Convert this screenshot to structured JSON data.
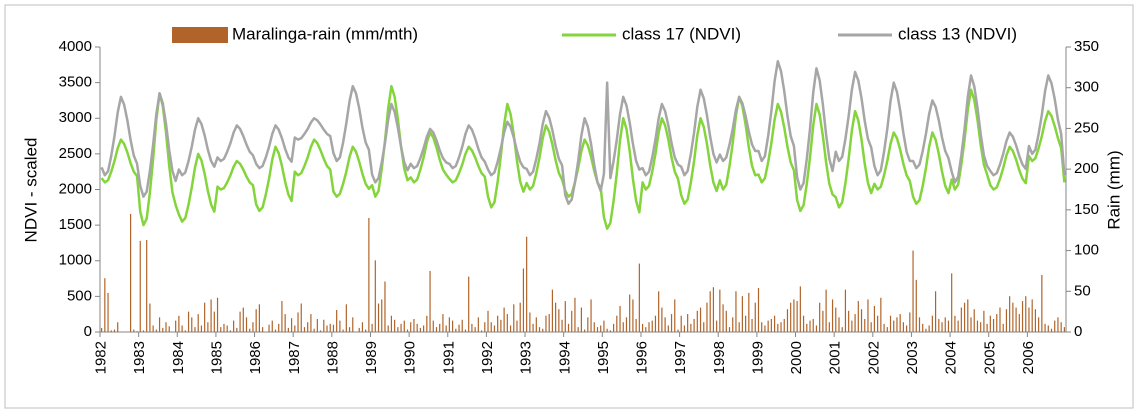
{
  "chart_data": {
    "type": "combo",
    "ylabel": "NDVI - scaled",
    "y2label": "Rain (mm)",
    "ylim": [
      0,
      4000
    ],
    "yticks": [
      0,
      500,
      1000,
      1500,
      2000,
      2500,
      3000,
      3500,
      4000
    ],
    "y2lim": [
      0,
      350
    ],
    "y2ticks": [
      0,
      50,
      100,
      150,
      200,
      250,
      300,
      350
    ],
    "categories": [
      "1982",
      null,
      null,
      null,
      null,
      null,
      null,
      null,
      null,
      null,
      null,
      null,
      "1983",
      null,
      null,
      null,
      null,
      null,
      null,
      null,
      null,
      null,
      null,
      null,
      "1984",
      null,
      null,
      null,
      null,
      null,
      null,
      null,
      null,
      null,
      null,
      null,
      "1985",
      null,
      null,
      null,
      null,
      null,
      null,
      null,
      null,
      null,
      null,
      null,
      "1986",
      null,
      null,
      null,
      null,
      null,
      null,
      null,
      null,
      null,
      null,
      null,
      "1987",
      null,
      null,
      null,
      null,
      null,
      null,
      null,
      null,
      null,
      null,
      null,
      "1988",
      null,
      null,
      null,
      null,
      null,
      null,
      null,
      null,
      null,
      null,
      null,
      "1989",
      null,
      null,
      null,
      null,
      null,
      null,
      null,
      null,
      null,
      null,
      null,
      "1990",
      null,
      null,
      null,
      null,
      null,
      null,
      null,
      null,
      null,
      null,
      null,
      "1991",
      null,
      null,
      null,
      null,
      null,
      null,
      null,
      null,
      null,
      null,
      null,
      "1992",
      null,
      null,
      null,
      null,
      null,
      null,
      null,
      null,
      null,
      null,
      null,
      "1993",
      null,
      null,
      null,
      null,
      null,
      null,
      null,
      null,
      null,
      null,
      null,
      "1994",
      null,
      null,
      null,
      null,
      null,
      null,
      null,
      null,
      null,
      null,
      null,
      "1995",
      null,
      null,
      null,
      null,
      null,
      null,
      null,
      null,
      null,
      null,
      null,
      "1996",
      null,
      null,
      null,
      null,
      null,
      null,
      null,
      null,
      null,
      null,
      null,
      "1997",
      null,
      null,
      null,
      null,
      null,
      null,
      null,
      null,
      null,
      null,
      null,
      "1998",
      null,
      null,
      null,
      null,
      null,
      null,
      null,
      null,
      null,
      null,
      null,
      "1999",
      null,
      null,
      null,
      null,
      null,
      null,
      null,
      null,
      null,
      null,
      null,
      "2000",
      null,
      null,
      null,
      null,
      null,
      null,
      null,
      null,
      null,
      null,
      null,
      "2001",
      null,
      null,
      null,
      null,
      null,
      null,
      null,
      null,
      null,
      null,
      null,
      "2002",
      null,
      null,
      null,
      null,
      null,
      null,
      null,
      null,
      null,
      null,
      null,
      "2003",
      null,
      null,
      null,
      null,
      null,
      null,
      null,
      null,
      null,
      null,
      null,
      "2004",
      null,
      null,
      null,
      null,
      null,
      null,
      null,
      null,
      null,
      null,
      null,
      "2005",
      null,
      null,
      null,
      null,
      null,
      null,
      null,
      null,
      null,
      null,
      null,
      "2006",
      null,
      null,
      null,
      null,
      null,
      null,
      null,
      null,
      null,
      null,
      null
    ],
    "series": [
      {
        "name": "Maralinga-rain (mm/mth)",
        "type": "bar",
        "axis": "y2",
        "color": "#b0642a",
        "values": [
          5,
          66,
          48,
          2,
          3,
          12,
          0,
          0,
          0,
          145,
          3,
          1,
          112,
          2,
          113,
          35,
          8,
          3,
          18,
          5,
          12,
          7,
          0,
          14,
          20,
          8,
          2,
          25,
          18,
          6,
          22,
          8,
          36,
          12,
          40,
          25,
          42,
          6,
          10,
          8,
          2,
          14,
          5,
          25,
          30,
          18,
          4,
          12,
          28,
          34,
          6,
          0,
          9,
          14,
          3,
          10,
          38,
          22,
          5,
          17,
          8,
          24,
          35,
          6,
          12,
          22,
          4,
          16,
          2,
          15,
          8,
          10,
          9,
          27,
          14,
          3,
          34,
          6,
          18,
          0,
          5,
          12,
          3,
          140,
          10,
          88,
          35,
          40,
          62,
          8,
          20,
          15,
          6,
          10,
          14,
          3,
          12,
          16,
          10,
          5,
          8,
          20,
          75,
          14,
          6,
          10,
          22,
          8,
          18,
          14,
          4,
          9,
          15,
          3,
          68,
          10,
          6,
          18,
          2,
          12,
          26,
          12,
          8,
          20,
          15,
          30,
          22,
          8,
          34,
          14,
          36,
          78,
          117,
          24,
          10,
          18,
          6,
          4,
          20,
          22,
          52,
          36,
          28,
          15,
          38,
          10,
          26,
          42,
          6,
          30,
          3,
          18,
          40,
          12,
          6,
          8,
          14,
          4,
          2,
          10,
          20,
          32,
          12,
          18,
          46,
          40,
          16,
          84,
          10,
          6,
          12,
          14,
          20,
          50,
          30,
          18,
          8,
          22,
          40,
          3,
          20,
          8,
          22,
          10,
          16,
          26,
          30,
          12,
          36,
          50,
          55,
          14,
          52,
          34,
          26,
          6,
          18,
          50,
          12,
          44,
          20,
          48,
          16,
          36,
          54,
          12,
          8,
          14,
          16,
          20,
          10,
          12,
          16,
          28,
          36,
          40,
          38,
          56,
          20,
          10,
          14,
          16,
          8,
          36,
          26,
          52,
          12,
          40,
          30,
          18,
          6,
          52,
          26,
          14,
          22,
          38,
          28,
          16,
          40,
          12,
          32,
          20,
          42,
          10,
          6,
          20,
          14,
          18,
          22,
          12,
          8,
          24,
          100,
          64,
          18,
          10,
          4,
          8,
          20,
          50,
          16,
          12,
          18,
          14,
          72,
          20,
          14,
          30,
          36,
          40,
          18,
          28,
          14,
          12,
          26,
          10,
          20,
          16,
          22,
          30,
          10,
          28,
          44,
          36,
          30,
          22,
          38,
          44,
          30,
          40,
          28,
          18,
          70,
          10,
          8,
          4,
          14,
          18,
          12,
          6
        ]
      },
      {
        "name": "class 17 (NDVI)",
        "type": "line",
        "color": "#84d43c",
        "values": [
          2160,
          2100,
          2130,
          2250,
          2400,
          2580,
          2700,
          2640,
          2520,
          2370,
          2250,
          2190,
          1690,
          1500,
          1590,
          1960,
          2430,
          2980,
          3350,
          3170,
          2800,
          2330,
          1960,
          1780,
          1650,
          1550,
          1600,
          1790,
          2030,
          2310,
          2500,
          2410,
          2220,
          1980,
          1790,
          1690,
          2040,
          2000,
          2020,
          2100,
          2200,
          2320,
          2400,
          2360,
          2280,
          2180,
          2100,
          2060,
          1790,
          1700,
          1750,
          1930,
          2150,
          2420,
          2600,
          2510,
          2330,
          2110,
          1930,
          1840,
          2250,
          2200,
          2230,
          2330,
          2450,
          2600,
          2700,
          2650,
          2550,
          2430,
          2330,
          2280,
          1970,
          1900,
          1940,
          2080,
          2250,
          2460,
          2600,
          2530,
          2390,
          2220,
          2080,
          2010,
          2060,
          1900,
          1980,
          2290,
          2680,
          3140,
          3450,
          3300,
          2990,
          2600,
          2290,
          2130,
          2170,
          2100,
          2140,
          2280,
          2450,
          2660,
          2800,
          2730,
          2590,
          2420,
          2280,
          2210,
          2150,
          2100,
          2130,
          2230,
          2350,
          2500,
          2600,
          2550,
          2450,
          2330,
          2230,
          2180,
          1900,
          1750,
          1820,
          2110,
          2480,
          2910,
          3200,
          3060,
          2770,
          2400,
          2110,
          1970,
          2090,
          2000,
          2050,
          2230,
          2450,
          2720,
          2900,
          2810,
          2630,
          2410,
          2230,
          2140,
          1980,
          1900,
          1940,
          2100,
          2300,
          2540,
          2700,
          2620,
          2460,
          2260,
          2100,
          2020,
          1610,
          1450,
          1530,
          1840,
          2230,
          2690,
          3000,
          2850,
          2540,
          2150,
          1840,
          1680,
          2100,
          2000,
          2050,
          2250,
          2500,
          2800,
          3000,
          2900,
          2700,
          2450,
          2250,
          2150,
          1920,
          1800,
          1860,
          2100,
          2400,
          2760,
          3000,
          2880,
          2640,
          2340,
          2100,
          1980,
          2130,
          2000,
          2070,
          2330,
          2650,
          3040,
          3300,
          3170,
          2910,
          2590,
          2330,
          2200,
          2210,
          2100,
          2160,
          2380,
          2650,
          2980,
          3200,
          3090,
          2870,
          2600,
          2380,
          2270,
          1850,
          1700,
          1780,
          2080,
          2450,
          2900,
          3200,
          3050,
          2750,
          2380,
          2080,
          1930,
          1890,
          1750,
          1820,
          2090,
          2430,
          2830,
          3100,
          2970,
          2700,
          2360,
          2090,
          1950,
          2080,
          2000,
          2040,
          2200,
          2400,
          2640,
          2800,
          2720,
          2560,
          2360,
          2200,
          2120,
          1900,
          1800,
          1850,
          2050,
          2300,
          2600,
          2800,
          2700,
          2500,
          2250,
          2050,
          1950,
          2140,
          2000,
          2070,
          2350,
          2700,
          3120,
          3400,
          3260,
          2980,
          2630,
          2350,
          2210,
          2060,
          2000,
          2030,
          2150,
          2300,
          2480,
          2600,
          2540,
          2420,
          2270,
          2150,
          2090,
          2470,
          2400,
          2440,
          2580,
          2750,
          2960,
          3100,
          3030,
          2890,
          2720,
          2580,
          2100
        ]
      },
      {
        "name": "class 13 (NDVI)",
        "type": "line",
        "color": "#a6a6a6",
        "values": [
          2310,
          2200,
          2255,
          2475,
          2750,
          3080,
          3300,
          3190,
          2970,
          2695,
          2475,
          2365,
          2050,
          1900,
          1970,
          2260,
          2630,
          3060,
          3350,
          3210,
          2920,
          2550,
          2260,
          2120,
          2280,
          2200,
          2240,
          2400,
          2600,
          2840,
          3000,
          2920,
          2760,
          2560,
          2400,
          2320,
          2450,
          2400,
          2430,
          2530,
          2650,
          2800,
          2900,
          2850,
          2750,
          2630,
          2530,
          2480,
          2360,
          2300,
          2330,
          2450,
          2600,
          2780,
          2900,
          2840,
          2720,
          2570,
          2450,
          2390,
          2730,
          2700,
          2720,
          2780,
          2850,
          2940,
          3000,
          2970,
          2910,
          2840,
          2780,
          2750,
          2510,
          2400,
          2450,
          2660,
          2930,
          3240,
          3450,
          3350,
          3140,
          2870,
          2660,
          2560,
          2210,
          2100,
          2160,
          2380,
          2650,
          2980,
          3200,
          3090,
          2870,
          2600,
          2380,
          2270,
          2360,
          2300,
          2330,
          2440,
          2580,
          2740,
          2850,
          2800,
          2690,
          2550,
          2440,
          2380,
          2360,
          2300,
          2330,
          2450,
          2600,
          2780,
          2900,
          2840,
          2720,
          2570,
          2450,
          2390,
          2280,
          2200,
          2240,
          2390,
          2580,
          2800,
          2950,
          2880,
          2730,
          2540,
          2390,
          2310,
          2290,
          2200,
          2250,
          2430,
          2650,
          2920,
          3100,
          3010,
          2830,
          2610,
          2430,
          2340,
          1920,
          1800,
          1860,
          2100,
          2400,
          2760,
          3000,
          2880,
          2640,
          2340,
          2100,
          1980,
          2220,
          3500,
          2160,
          2400,
          2700,
          3060,
          3300,
          3180,
          2940,
          2640,
          2400,
          2280,
          2300,
          2200,
          2250,
          2450,
          2700,
          3000,
          3200,
          3100,
          2900,
          2650,
          2450,
          2350,
          2320,
          2200,
          2260,
          2500,
          2800,
          3160,
          3400,
          3280,
          3040,
          2740,
          2500,
          2380,
          2490,
          2400,
          2450,
          2630,
          2850,
          3120,
          3300,
          3210,
          3030,
          2810,
          2630,
          2540,
          2540,
          2400,
          2470,
          2750,
          3100,
          3520,
          3800,
          3660,
          3380,
          3030,
          2750,
          2610,
          2170,
          2000,
          2090,
          2430,
          2850,
          3360,
          3700,
          3530,
          3190,
          2770,
          2430,
          2260,
          2530,
          2400,
          2460,
          2710,
          3030,
          3400,
          3650,
          3530,
          3280,
          2960,
          2710,
          2590,
          2330,
          2200,
          2270,
          2530,
          2850,
          3240,
          3500,
          3370,
          3110,
          2790,
          2530,
          2400,
          2400,
          2300,
          2350,
          2540,
          2780,
          3060,
          3250,
          3160,
          2970,
          2730,
          2540,
          2440,
          2250,
          2100,
          2180,
          2480,
          2850,
          3300,
          3600,
          3450,
          3150,
          2780,
          2480,
          2330,
          2260,
          2200,
          2230,
          2350,
          2500,
          2680,
          2800,
          2740,
          2620,
          2470,
          2350,
          2290,
          2610,
          2500,
          2560,
          2780,
          3050,
          3380,
          3600,
          3490,
          3270,
          2980,
          2780,
          2200
        ]
      }
    ]
  }
}
